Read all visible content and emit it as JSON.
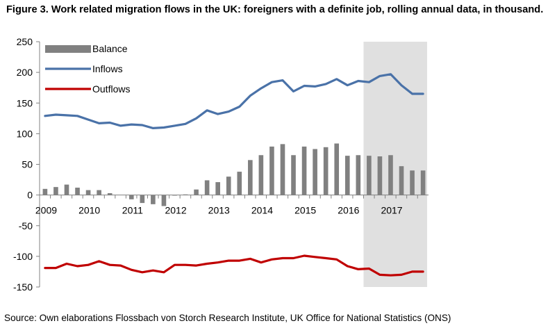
{
  "title": "Figure 3. Work related migration flows in the UK: foreigners with a definite job, rolling annual data, in thousand.",
  "source": "Source: Own elaborations Flossbach von Storch Research Institute, UK Office for National Statistics (ONS)",
  "chart_data": {
    "type": "bar+line",
    "ylim": [
      -150,
      250
    ],
    "yticks": [
      -150,
      -100,
      -50,
      0,
      50,
      100,
      150,
      200,
      250
    ],
    "ytick_labels": [
      "-150",
      "-100",
      "-50",
      "0",
      "50",
      "100",
      "150",
      "200",
      "250"
    ],
    "x_start": 2009.0,
    "x_end": 2017.75,
    "xticks": [
      2009,
      2010,
      2011,
      2012,
      2013,
      2014,
      2015,
      2016,
      2017
    ],
    "xtick_labels": [
      "2009",
      "2010",
      "2011",
      "2012",
      "2013",
      "2014",
      "2015",
      "2016",
      "2017"
    ],
    "shaded_region": [
      2016.5,
      2017.75
    ],
    "grid": false,
    "legend_position": "top-left",
    "colors": {
      "Balance": "#808080",
      "Inflows": "#4a72a8",
      "Outflows": "#c00000",
      "shade": "#e0e0e0"
    },
    "x": [
      2009.0,
      2009.25,
      2009.5,
      2009.75,
      2010.0,
      2010.25,
      2010.5,
      2010.75,
      2011.0,
      2011.25,
      2011.5,
      2011.75,
      2012.0,
      2012.25,
      2012.5,
      2012.75,
      2013.0,
      2013.25,
      2013.5,
      2013.75,
      2014.0,
      2014.25,
      2014.5,
      2014.75,
      2015.0,
      2015.25,
      2015.5,
      2015.75,
      2016.0,
      2016.25,
      2016.5,
      2016.75,
      2017.0,
      2017.25,
      2017.5,
      2017.75
    ],
    "series": [
      {
        "name": "Balance",
        "type": "bar",
        "values": [
          10,
          13,
          17,
          12,
          8,
          8,
          3,
          0,
          -7,
          -13,
          -15,
          -18,
          -1,
          1,
          9,
          24,
          21,
          30,
          38,
          57,
          65,
          79,
          83,
          65,
          79,
          75,
          78,
          84,
          64,
          65,
          64,
          63,
          65,
          47,
          40,
          40
        ]
      },
      {
        "name": "Inflows",
        "type": "line",
        "values": [
          129,
          131,
          130,
          129,
          123,
          117,
          118,
          113,
          115,
          114,
          109,
          110,
          113,
          116,
          125,
          138,
          132,
          136,
          144,
          162,
          174,
          184,
          187,
          169,
          178,
          177,
          181,
          189,
          179,
          186,
          184,
          194,
          197,
          179,
          165,
          165
        ]
      },
      {
        "name": "Outflows",
        "type": "line",
        "values": [
          -119,
          -119,
          -112,
          -116,
          -114,
          -108,
          -114,
          -115,
          -122,
          -126,
          -123,
          -126,
          -114,
          -114,
          -115,
          -112,
          -110,
          -107,
          -107,
          -104,
          -110,
          -105,
          -103,
          -103,
          -99,
          -101,
          -103,
          -105,
          -116,
          -121,
          -120,
          -130,
          -131,
          -130,
          -125,
          -125
        ]
      }
    ]
  }
}
